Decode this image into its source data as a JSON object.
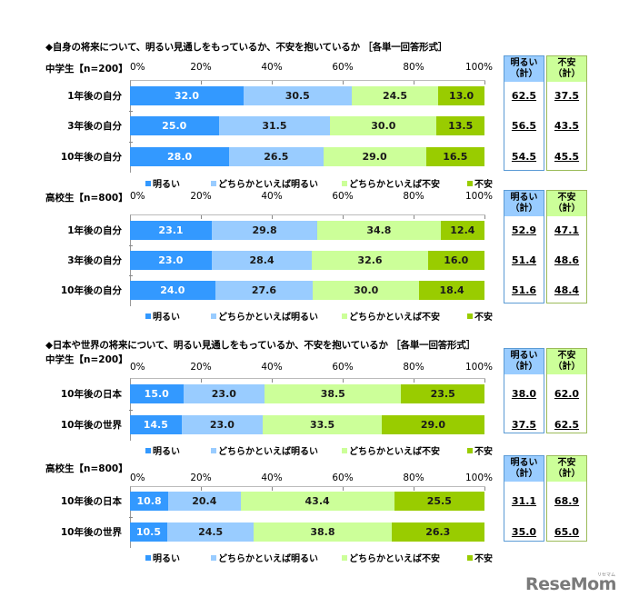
{
  "section1": {
    "title": "◆自身の将来について、明るい見通しをもっているか、不安を抱いているか ［各単一回答形式］"
  },
  "section2": {
    "title": "◆日本や世界の将来について、明るい見通しをもっているか、不安を抱いているか ［各単一回答形式］"
  },
  "axis_ticks": [
    "0%",
    "20%",
    "40%",
    "60%",
    "80%",
    "100%"
  ],
  "legend": {
    "items": [
      "明るい",
      "どちらかといえば明るい",
      "どちらかといえば不安",
      "不安"
    ]
  },
  "summary_headers": {
    "bright_line1": "明るい",
    "bright_line2": "（計）",
    "anxious_line1": "不安",
    "anxious_line2": "（計）"
  },
  "colors": {
    "bright": "#3399ff",
    "somewhat_bright": "#99ccff",
    "somewhat_anxious": "#ccff99",
    "anxious": "#99cc00"
  },
  "logo": {
    "text": "ReseMom",
    "sub": "リセマム"
  },
  "chart_data": [
    {
      "type": "bar",
      "orientation": "horizontal-stacked-100",
      "title": "自身の将来について 中学生【n=200】",
      "group_label": "中学生【n=200】",
      "categories": [
        "1年後の自分",
        "3年後の自分",
        "10年後の自分"
      ],
      "series": [
        {
          "name": "明るい",
          "values": [
            32.0,
            25.0,
            28.0
          ]
        },
        {
          "name": "どちらかといえば明るい",
          "values": [
            30.5,
            31.5,
            26.5
          ]
        },
        {
          "name": "どちらかといえば不安",
          "values": [
            24.5,
            30.0,
            29.0
          ]
        },
        {
          "name": "不安",
          "values": [
            13.0,
            13.5,
            16.5
          ]
        }
      ],
      "labels": [
        [
          "32.0",
          "30.5",
          "24.5",
          "13.0"
        ],
        [
          "25.0",
          "31.5",
          "30.0",
          "13.5"
        ],
        [
          "28.0",
          "26.5",
          "29.0",
          "16.5"
        ]
      ],
      "totals": {
        "明るい（計）": [
          "62.5",
          "56.5",
          "54.5"
        ],
        "不安（計）": [
          "37.5",
          "43.5",
          "45.5"
        ]
      },
      "xlim": [
        0,
        100
      ]
    },
    {
      "type": "bar",
      "orientation": "horizontal-stacked-100",
      "title": "自身の将来について 高校生【n=800】",
      "group_label": "高校生【n=800】",
      "categories": [
        "1年後の自分",
        "3年後の自分",
        "10年後の自分"
      ],
      "series": [
        {
          "name": "明るい",
          "values": [
            23.1,
            23.0,
            24.0
          ]
        },
        {
          "name": "どちらかといえば明るい",
          "values": [
            29.8,
            28.4,
            27.6
          ]
        },
        {
          "name": "どちらかといえば不安",
          "values": [
            34.8,
            32.6,
            30.0
          ]
        },
        {
          "name": "不安",
          "values": [
            12.4,
            16.0,
            18.4
          ]
        }
      ],
      "labels": [
        [
          "23.1",
          "29.8",
          "34.8",
          "12.4"
        ],
        [
          "23.0",
          "28.4",
          "32.6",
          "16.0"
        ],
        [
          "24.0",
          "27.6",
          "30.0",
          "18.4"
        ]
      ],
      "totals": {
        "明るい（計）": [
          "52.9",
          "51.4",
          "51.6"
        ],
        "不安（計）": [
          "47.1",
          "48.6",
          "48.4"
        ]
      },
      "xlim": [
        0,
        100
      ]
    },
    {
      "type": "bar",
      "orientation": "horizontal-stacked-100",
      "title": "日本や世界の将来について 中学生【n=200】",
      "group_label": "中学生【n=200】",
      "categories": [
        "10年後の日本",
        "10年後の世界"
      ],
      "series": [
        {
          "name": "明るい",
          "values": [
            15.0,
            14.5
          ]
        },
        {
          "name": "どちらかといえば明るい",
          "values": [
            23.0,
            23.0
          ]
        },
        {
          "name": "どちらかといえば不安",
          "values": [
            38.5,
            33.5
          ]
        },
        {
          "name": "不安",
          "values": [
            23.5,
            29.0
          ]
        }
      ],
      "labels": [
        [
          "15.0",
          "23.0",
          "38.5",
          "23.5"
        ],
        [
          "14.5",
          "23.0",
          "33.5",
          "29.0"
        ]
      ],
      "totals": {
        "明るい（計）": [
          "38.0",
          "37.5"
        ],
        "不安（計）": [
          "62.0",
          "62.5"
        ]
      },
      "xlim": [
        0,
        100
      ]
    },
    {
      "type": "bar",
      "orientation": "horizontal-stacked-100",
      "title": "日本や世界の将来について 高校生【n=800】",
      "group_label": "高校生【n=800】",
      "categories": [
        "10年後の日本",
        "10年後の世界"
      ],
      "series": [
        {
          "name": "明るい",
          "values": [
            10.8,
            10.5
          ]
        },
        {
          "name": "どちらかといえば明るい",
          "values": [
            20.4,
            24.5
          ]
        },
        {
          "name": "どちらかといえば不安",
          "values": [
            43.4,
            38.8
          ]
        },
        {
          "name": "不安",
          "values": [
            25.5,
            26.3
          ]
        }
      ],
      "labels": [
        [
          "10.8",
          "20.4",
          "43.4",
          "25.5"
        ],
        [
          "10.5",
          "24.5",
          "38.8",
          "26.3"
        ]
      ],
      "totals": {
        "明るい（計）": [
          "31.1",
          "35.0"
        ],
        "不安（計）": [
          "68.9",
          "65.0"
        ]
      },
      "xlim": [
        0,
        100
      ]
    }
  ]
}
